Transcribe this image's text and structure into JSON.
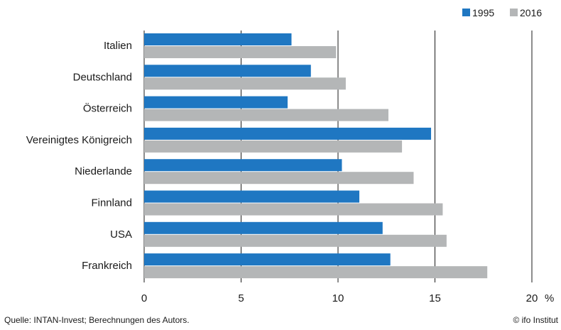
{
  "chart_data": {
    "type": "bar",
    "orientation": "horizontal",
    "categories": [
      "Italien",
      "Deutschland",
      "Österreich",
      "Vereinigtes Königreich",
      "Niederlande",
      "Finnland",
      "USA",
      "Frankreich"
    ],
    "series": [
      {
        "name": "1995",
        "values": [
          7.6,
          8.6,
          7.4,
          14.8,
          10.2,
          11.1,
          12.3,
          12.7
        ],
        "color": "#1f77c2"
      },
      {
        "name": "2016",
        "values": [
          9.9,
          10.4,
          12.6,
          13.3,
          13.9,
          15.4,
          15.6,
          17.7
        ],
        "color": "#b4b6b7"
      }
    ],
    "xlim": [
      0,
      20
    ],
    "xticks": [
      "0",
      "5",
      "10",
      "15",
      "20"
    ],
    "x_unit": "%",
    "grid": "vertical",
    "legend_position": "top-right"
  },
  "footer": {
    "source": "Quelle: INTAN-Invest; Berechnungen des Autors.",
    "credit": "© ifo Institut"
  }
}
